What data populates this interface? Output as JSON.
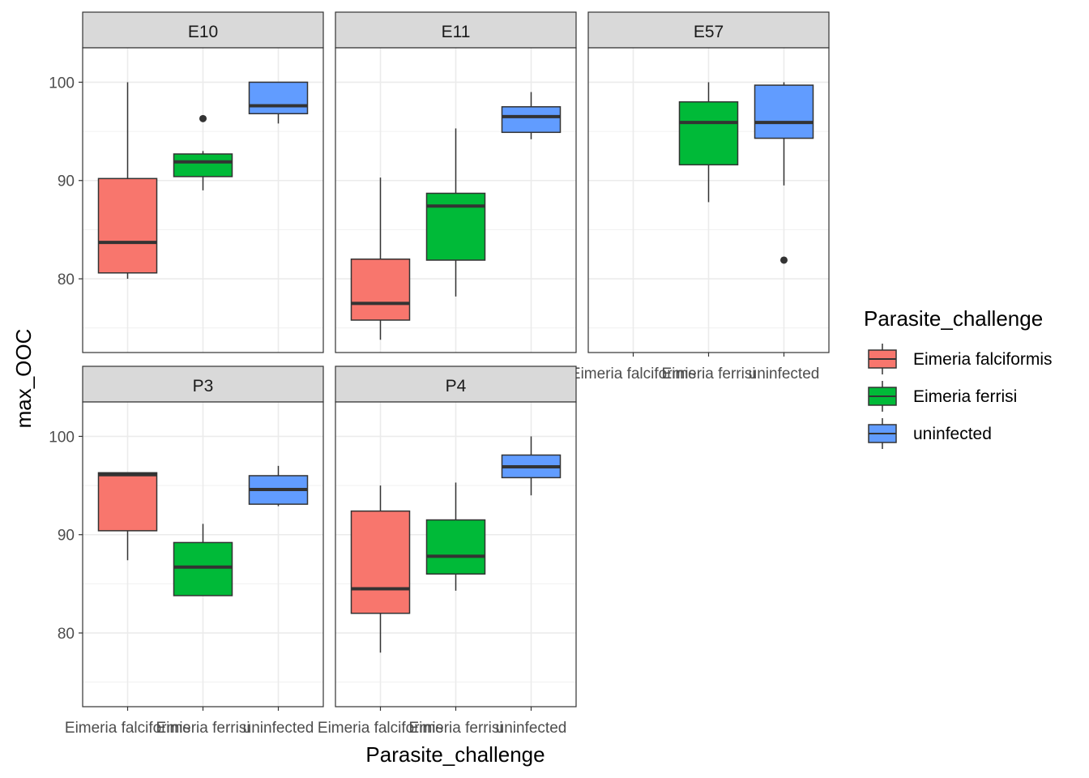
{
  "chart_data": {
    "type": "boxplot",
    "facet_variable": "",
    "xlabel": "Parasite_challenge",
    "ylabel": "max_OOC",
    "ylim": [
      72.5,
      103.5
    ],
    "y_ticks": [
      80,
      90,
      100
    ],
    "categories": [
      "Eimeria falciformis",
      "Eimeria ferrisi",
      "uninfected"
    ],
    "grid": true,
    "legend": {
      "title": "Parasite_challenge",
      "placement": "right",
      "entries": [
        {
          "label": "Eimeria falciformis",
          "color": "#F8766D"
        },
        {
          "label": "Eimeria ferrisi",
          "color": "#00BA38"
        },
        {
          "label": "uninfected",
          "color": "#619CFF"
        }
      ]
    },
    "panels": [
      {
        "name": "E10",
        "boxes": [
          {
            "category": "Eimeria falciformis",
            "whisker_low": 80.0,
            "q1": 80.6,
            "median": 83.7,
            "q3": 90.2,
            "whisker_high": 100.0,
            "outliers": []
          },
          {
            "category": "Eimeria ferrisi",
            "whisker_low": 89.0,
            "q1": 90.4,
            "median": 91.9,
            "q3": 92.7,
            "whisker_high": 93.0,
            "outliers": [
              96.3
            ]
          },
          {
            "category": "uninfected",
            "whisker_low": 95.8,
            "q1": 96.8,
            "median": 97.6,
            "q3": 100.0,
            "whisker_high": 100.0,
            "outliers": []
          }
        ]
      },
      {
        "name": "E11",
        "boxes": [
          {
            "category": "Eimeria falciformis",
            "whisker_low": 73.8,
            "q1": 75.8,
            "median": 77.5,
            "q3": 82.0,
            "whisker_high": 90.3,
            "outliers": []
          },
          {
            "category": "Eimeria ferrisi",
            "whisker_low": 78.2,
            "q1": 81.9,
            "median": 87.4,
            "q3": 88.7,
            "whisker_high": 95.3,
            "outliers": []
          },
          {
            "category": "uninfected",
            "whisker_low": 94.2,
            "q1": 94.9,
            "median": 96.5,
            "q3": 97.5,
            "whisker_high": 99.0,
            "outliers": []
          }
        ]
      },
      {
        "name": "E57",
        "boxes": [
          {
            "category": "Eimeria ferrisi",
            "whisker_low": 87.8,
            "q1": 91.6,
            "median": 95.9,
            "q3": 98.0,
            "whisker_high": 100.0,
            "outliers": []
          },
          {
            "category": "uninfected",
            "whisker_low": 89.5,
            "q1": 94.3,
            "median": 95.9,
            "q3": 99.7,
            "whisker_high": 100.0,
            "outliers": [
              81.9
            ]
          }
        ]
      },
      {
        "name": "P3",
        "boxes": [
          {
            "category": "Eimeria falciformis",
            "whisker_low": 87.4,
            "q1": 90.4,
            "median": 96.1,
            "q3": 96.3,
            "whisker_high": 96.3,
            "outliers": []
          },
          {
            "category": "Eimeria ferrisi",
            "whisker_low": 83.8,
            "q1": 83.8,
            "median": 86.7,
            "q3": 89.2,
            "whisker_high": 91.1,
            "outliers": []
          },
          {
            "category": "uninfected",
            "whisker_low": 92.9,
            "q1": 93.1,
            "median": 94.6,
            "q3": 96.0,
            "whisker_high": 97.0,
            "outliers": []
          }
        ]
      },
      {
        "name": "P4",
        "boxes": [
          {
            "category": "Eimeria falciformis",
            "whisker_low": 78.0,
            "q1": 82.0,
            "median": 84.5,
            "q3": 92.4,
            "whisker_high": 95.0,
            "outliers": []
          },
          {
            "category": "Eimeria ferrisi",
            "whisker_low": 84.3,
            "q1": 86.0,
            "median": 87.8,
            "q3": 91.5,
            "whisker_high": 95.3,
            "outliers": []
          },
          {
            "category": "uninfected",
            "whisker_low": 94.0,
            "q1": 95.8,
            "median": 96.9,
            "q3": 98.1,
            "whisker_high": 100.0,
            "outliers": []
          }
        ]
      }
    ]
  }
}
